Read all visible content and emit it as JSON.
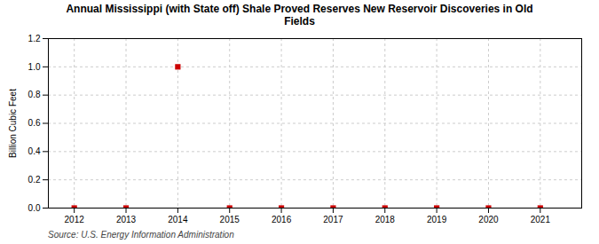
{
  "chart_data": {
    "type": "scatter",
    "title": "Annual Mississippi (with State off) Shale Proved Reserves New Reservoir Discoveries in Old\nFields",
    "ylabel": "Billion Cubic Feet",
    "source": "Source: U.S. Energy Information Administration",
    "x": [
      2012,
      2013,
      2014,
      2015,
      2016,
      2017,
      2018,
      2019,
      2020,
      2021
    ],
    "values": [
      0,
      0,
      1.0,
      0,
      0,
      0,
      0,
      0,
      0,
      0
    ],
    "color": "#cc0000",
    "marker": "square",
    "xlim": [
      2011.5,
      2021.8
    ],
    "xticks": [
      2012,
      2013,
      2014,
      2015,
      2016,
      2017,
      2018,
      2019,
      2020,
      2021
    ],
    "ylim": [
      0,
      1.2
    ],
    "yticks": [
      {
        "value": 0.0,
        "label": "0.0"
      },
      0.2,
      0.4,
      0.6,
      0.8,
      {
        "value": 1.0,
        "label": "1.0"
      },
      1.2
    ],
    "grid": true
  }
}
